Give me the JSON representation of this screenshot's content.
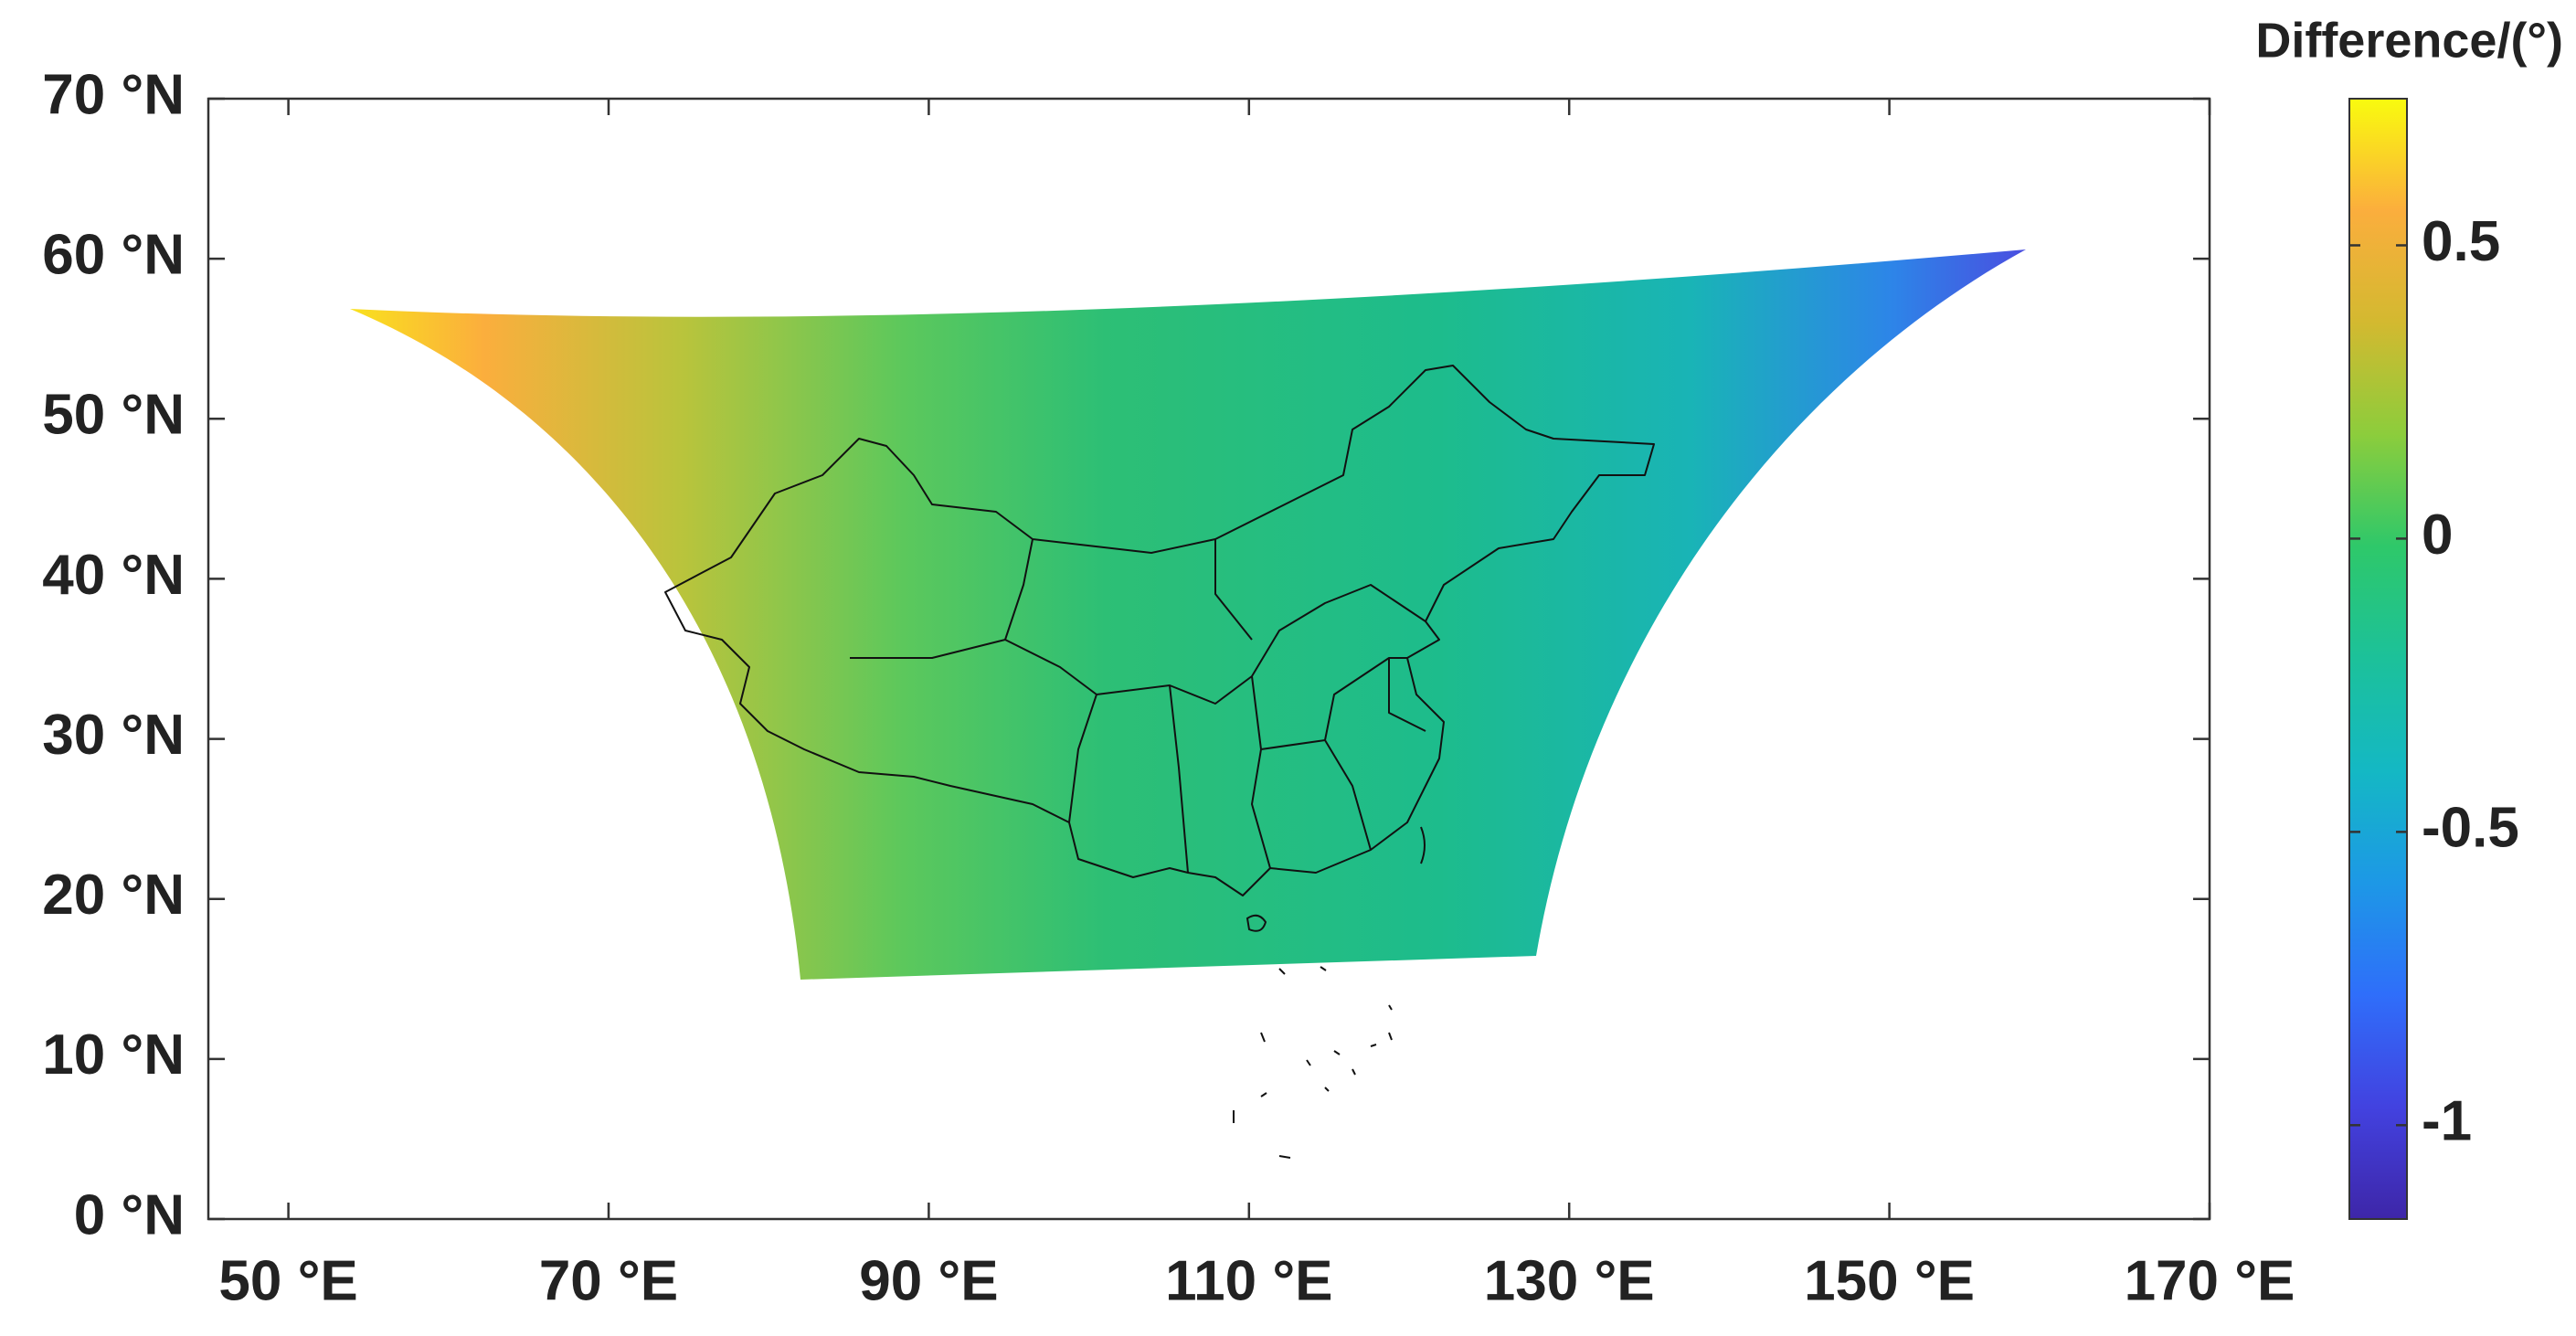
{
  "chart_data": {
    "type": "map",
    "colorbar_title": "Difference/(°)",
    "xlim": [
      45,
      170
    ],
    "xticks": [
      {
        "value": 50,
        "label": "50 °E"
      },
      {
        "value": 70,
        "label": "70 °E"
      },
      {
        "value": 90,
        "label": "90 °E"
      },
      {
        "value": 110,
        "label": "110 °E"
      },
      {
        "value": 130,
        "label": "130 °E"
      },
      {
        "value": 150,
        "label": "150 °E"
      },
      {
        "value": 170,
        "label": "170 °E"
      }
    ],
    "ylim": [
      0,
      70
    ],
    "yticks": [
      {
        "value": 0,
        "label": "0 °N"
      },
      {
        "value": 10,
        "label": "10 °N"
      },
      {
        "value": 20,
        "label": "20 °N"
      },
      {
        "value": 30,
        "label": "30 °N"
      },
      {
        "value": 40,
        "label": "40 °N"
      },
      {
        "value": 50,
        "label": "50 °N"
      },
      {
        "value": 60,
        "label": "60 °N"
      },
      {
        "value": 70,
        "label": "70 °N"
      }
    ],
    "clim": [
      -1.16,
      0.75
    ],
    "cticks": [
      -1,
      -0.5,
      0,
      0.5
    ],
    "colormap": [
      "#3e26a8",
      "#4242e0",
      "#2f6efa",
      "#1d98e6",
      "#14b8c4",
      "#1cc19a",
      "#2ec86a",
      "#8ccd3c",
      "#d3b930",
      "#fbae3d",
      "#f9fb0e"
    ]
  }
}
